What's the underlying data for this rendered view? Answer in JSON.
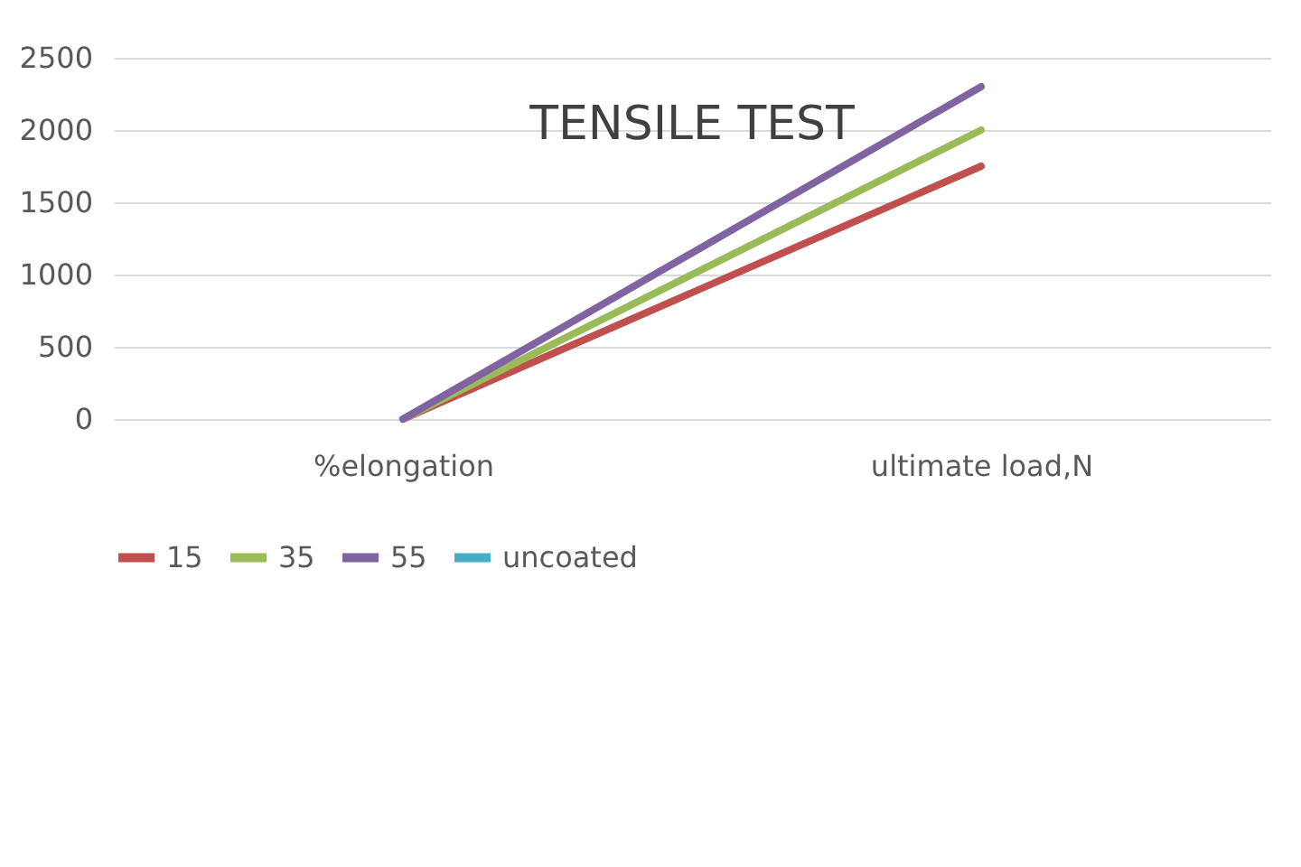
{
  "chart_data": {
    "type": "line",
    "title": "TENSILE TEST",
    "categories": [
      "%elongation",
      "ultimate load,N"
    ],
    "series": [
      {
        "name": "15",
        "color": "#c0504d",
        "values": [
          0,
          1750
        ]
      },
      {
        "name": "35",
        "color": "#9bbb59",
        "values": [
          0,
          2000
        ]
      },
      {
        "name": "55",
        "color": "#8064a2",
        "values": [
          0,
          2300
        ]
      },
      {
        "name": "uncoated",
        "color": "#4bacc6",
        "values": [
          null,
          null
        ]
      }
    ],
    "ylim": [
      0,
      2500
    ],
    "yticks": [
      0,
      500,
      1000,
      1500,
      2000,
      2500
    ],
    "grid": "y",
    "legend": "bottom",
    "marker": "none",
    "line_style": "solid"
  }
}
